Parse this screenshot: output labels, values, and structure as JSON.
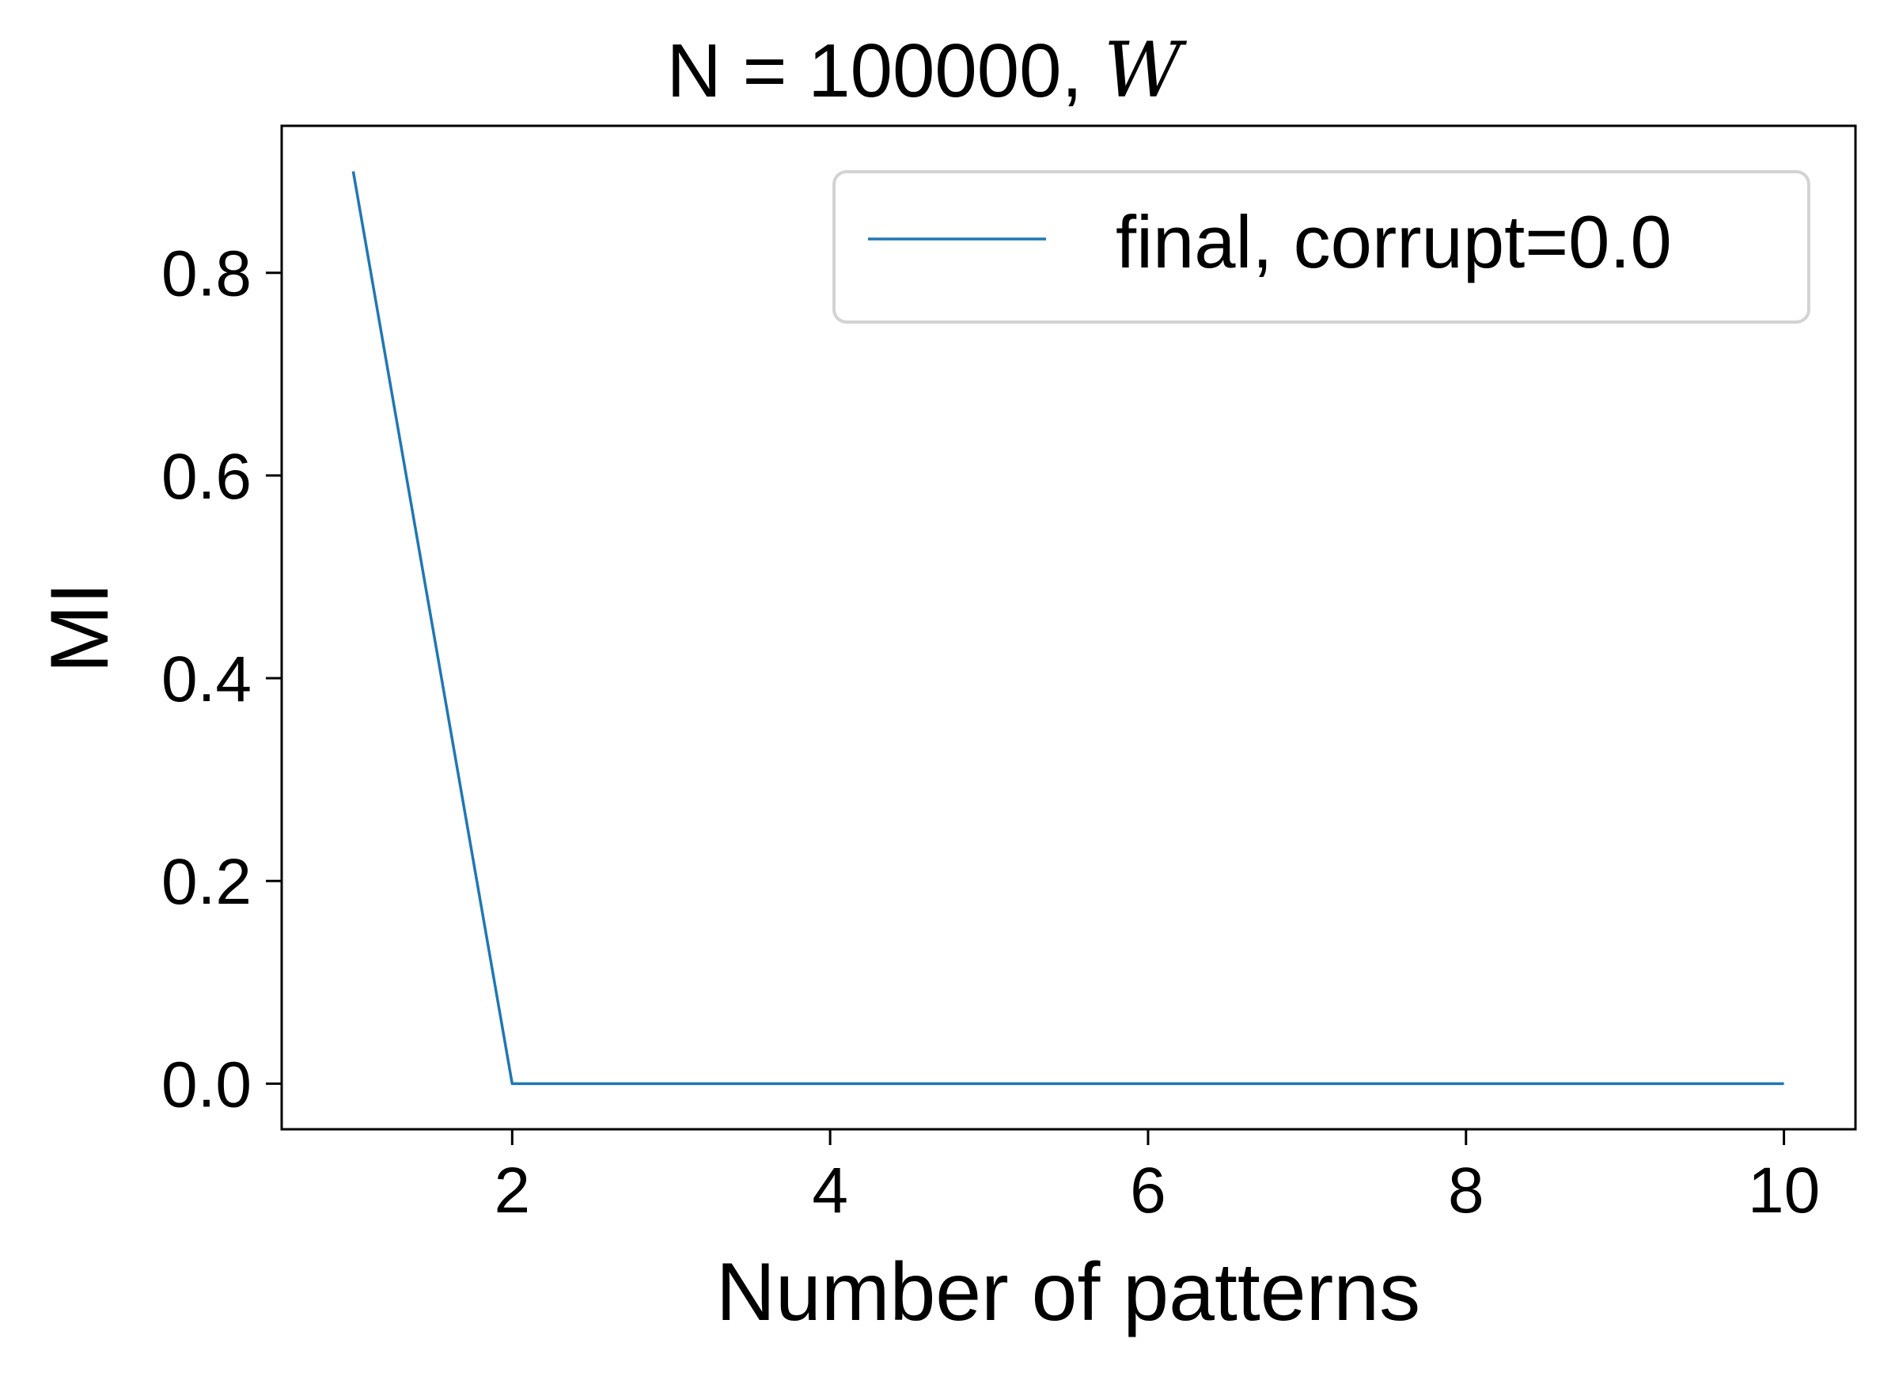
{
  "chart_data": {
    "type": "line",
    "title": {
      "prefix": "N = 100000, ",
      "variable": "W"
    },
    "xlabel": "Number of patterns",
    "ylabel": "MI",
    "xlim": [
      0.55,
      10.45
    ],
    "ylim": [
      -0.045,
      0.945
    ],
    "x_ticks": [
      2,
      4,
      6,
      8,
      10
    ],
    "x_tick_labels": [
      "2",
      "4",
      "6",
      "8",
      "10"
    ],
    "y_ticks": [
      0.0,
      0.2,
      0.4,
      0.6,
      0.8
    ],
    "y_tick_labels": [
      "0.0",
      "0.2",
      "0.4",
      "0.6",
      "0.8"
    ],
    "grid": false,
    "legend_position": "upper right",
    "series": [
      {
        "name": "final, corrupt=0.0",
        "color": "#1f77b4",
        "x": [
          1,
          2,
          3,
          4,
          5,
          6,
          7,
          8,
          9,
          10
        ],
        "y": [
          0.9,
          0.0,
          0.0,
          0.0,
          0.0,
          0.0,
          0.0,
          0.0,
          0.0,
          0.0
        ]
      }
    ]
  }
}
